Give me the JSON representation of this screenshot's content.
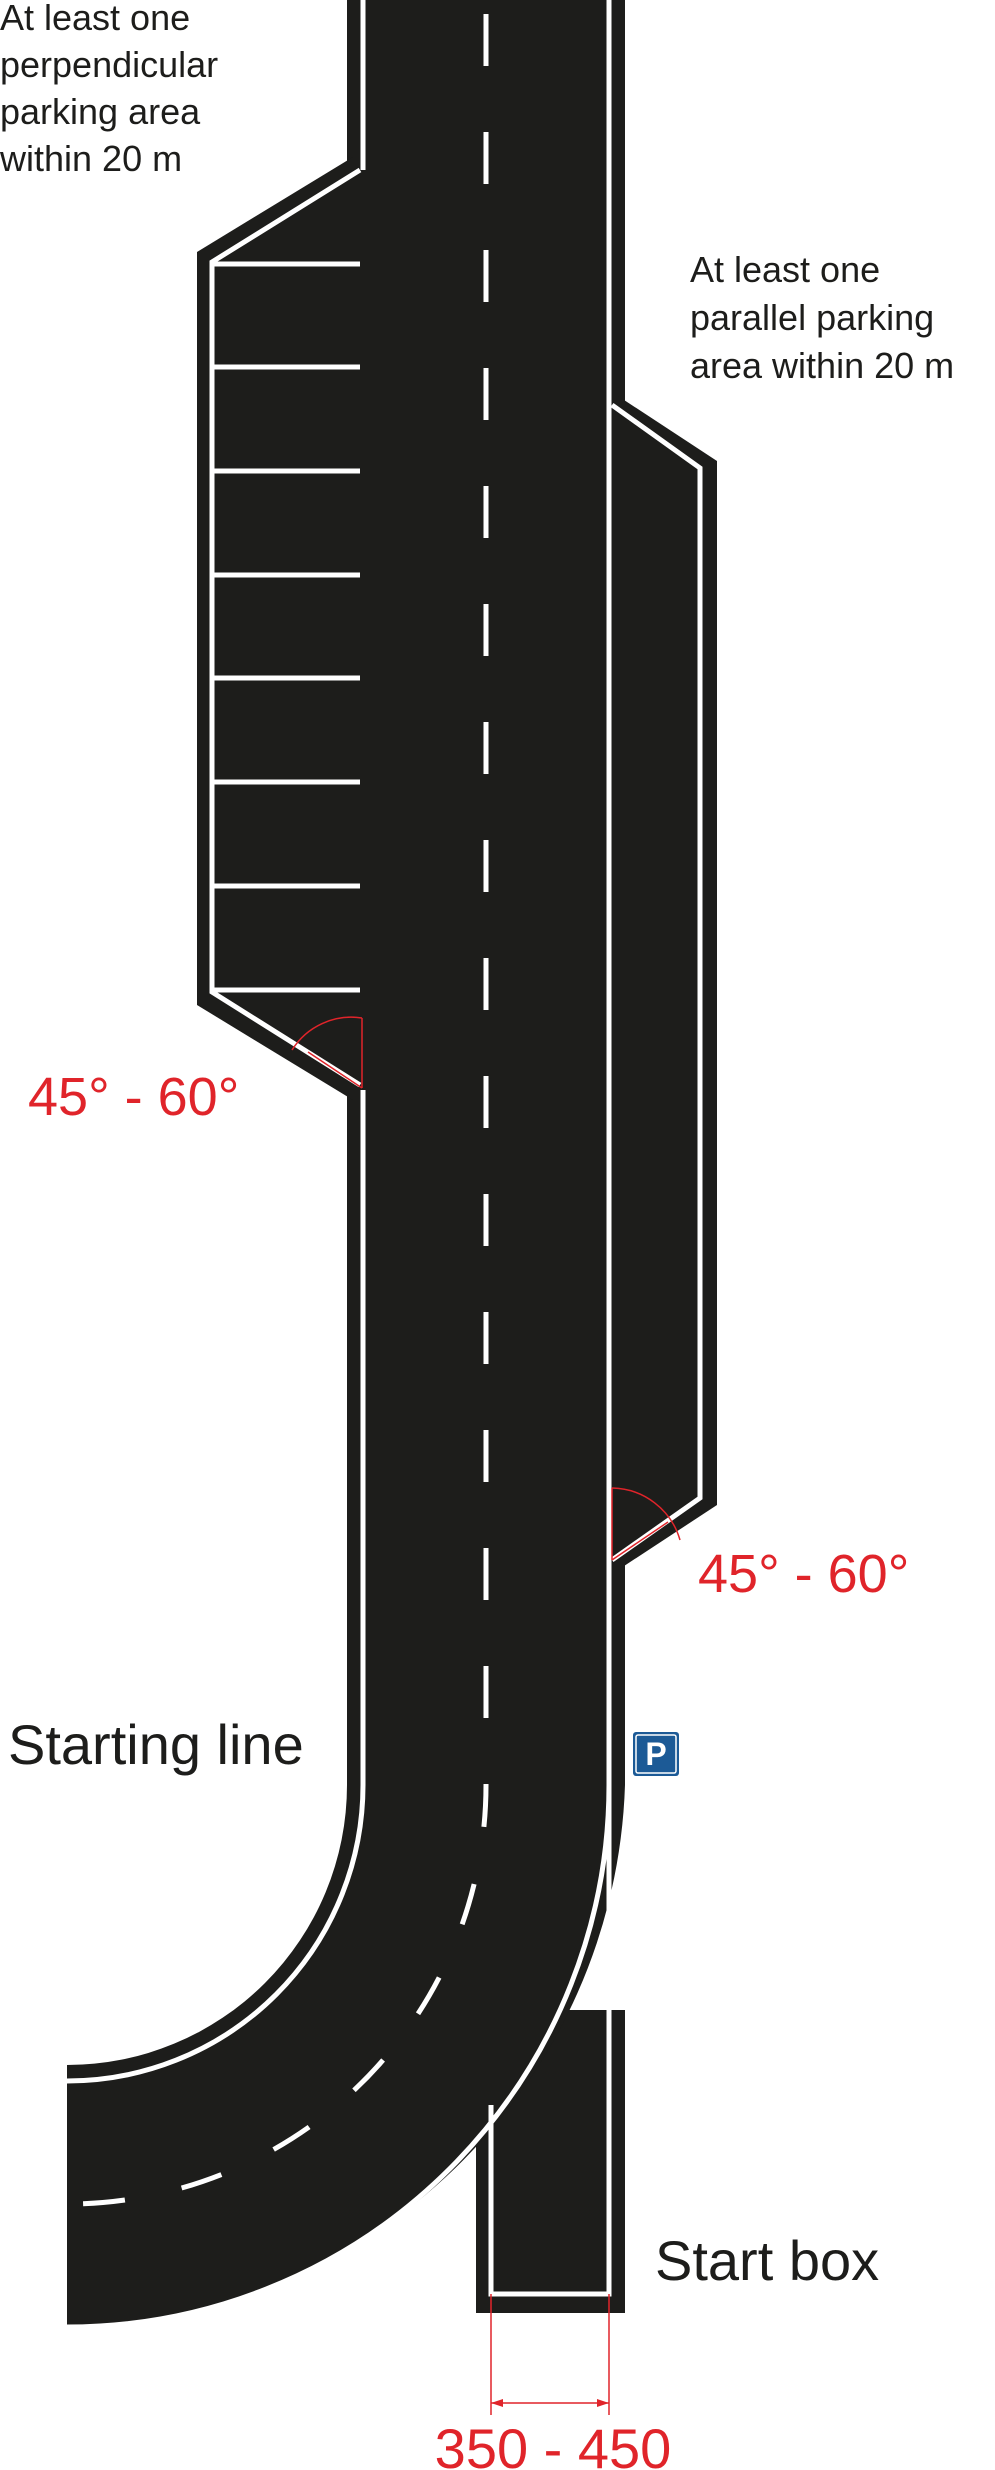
{
  "labels": {
    "perpendicular_parking": [
      "At least one",
      "perpendicular",
      "parking area",
      "within 20 m"
    ],
    "parallel_parking": [
      "At least one",
      "parallel parking",
      "area within 20 m"
    ],
    "angle_upper": "45° - 60°",
    "angle_lower": "45° - 60°",
    "starting_line": "Starting line",
    "start_box": "Start box",
    "width_range": "350 - 450",
    "parking_sign": "P"
  },
  "colors": {
    "road": "#1d1d1b",
    "marking": "#ffffff",
    "dimension": "#e0242a",
    "sign": "#1c5a96",
    "text": "#1d1d1b"
  }
}
